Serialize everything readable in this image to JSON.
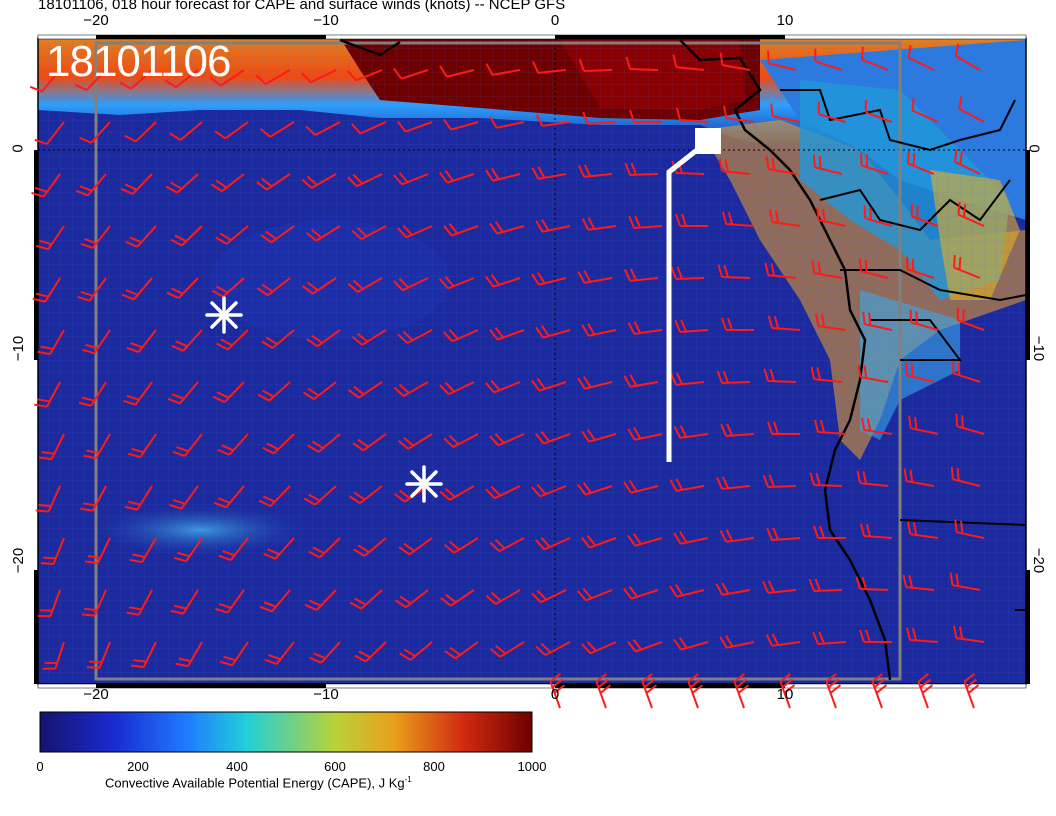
{
  "title": "18101106, 018 hour forecast for CAPE and surface winds (knots) -- NCEP GFS",
  "timestamp_label": "18101106",
  "map": {
    "lon_ticks_top": [
      "−20",
      "−10",
      "0",
      "10"
    ],
    "lon_ticks_bottom": [
      "−20",
      "−10",
      "0",
      "10"
    ],
    "lat_ticks_left": [
      "0",
      "−10",
      "−20"
    ],
    "lat_ticks_right": [
      "0",
      "−10",
      "−20"
    ],
    "colors": {
      "ocean_low_cape": "#1a2a9c",
      "high_cape": "#7a0000",
      "wind_barbs": "#ff1a1a",
      "coastline": "#000000",
      "flight_track": "#ffffff"
    },
    "markers": [
      "asterisk",
      "asterisk",
      "square"
    ]
  },
  "colorbar": {
    "ticks": [
      "0",
      "200",
      "400",
      "600",
      "800",
      "1000"
    ],
    "label": "Convective Available Potential Energy (CAPE), J Kg",
    "label_sup": "-1",
    "stops": [
      "#14146e",
      "#1a2ad0",
      "#1f7cff",
      "#22cfd8",
      "#b9d23a",
      "#e8a01a",
      "#d22a10",
      "#6e0000"
    ]
  }
}
